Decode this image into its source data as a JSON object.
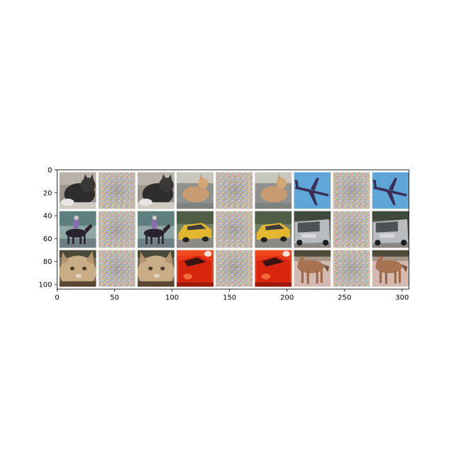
{
  "figure": {
    "description_free": true,
    "grid": {
      "rows": 3,
      "cols": 9,
      "tile_kinds": [
        "original",
        "perturbation",
        "adversarial"
      ]
    },
    "rows": [
      [
        "cat-dark",
        "noise",
        "cat-dark",
        "cat-sitting",
        "noise",
        "cat-sitting",
        "airplane",
        "noise",
        "airplane"
      ],
      [
        "horse-rider",
        "noise",
        "horse-rider",
        "yellow-car",
        "noise",
        "yellow-car",
        "silver-car",
        "noise",
        "silver-car"
      ],
      [
        "cat-orange",
        "noise",
        "cat-orange",
        "red-car",
        "noise",
        "red-car",
        "horse-brown",
        "noise",
        "horse-brown"
      ]
    ],
    "colors": {
      "border": "#ffffff",
      "axis": "#000000",
      "noise_base": "#c9b9b0"
    }
  },
  "axes": {
    "xlim": [
      0,
      306
    ],
    "ylim": [
      104,
      0
    ],
    "x_ticks": [
      0,
      50,
      100,
      150,
      200,
      250,
      300
    ],
    "y_ticks": [
      0,
      20,
      40,
      60,
      80,
      100
    ],
    "x_tick_labels": [
      "0",
      "50",
      "100",
      "150",
      "200",
      "250",
      "300"
    ],
    "y_tick_labels": [
      "0",
      "20",
      "40",
      "60",
      "80",
      "100"
    ]
  }
}
